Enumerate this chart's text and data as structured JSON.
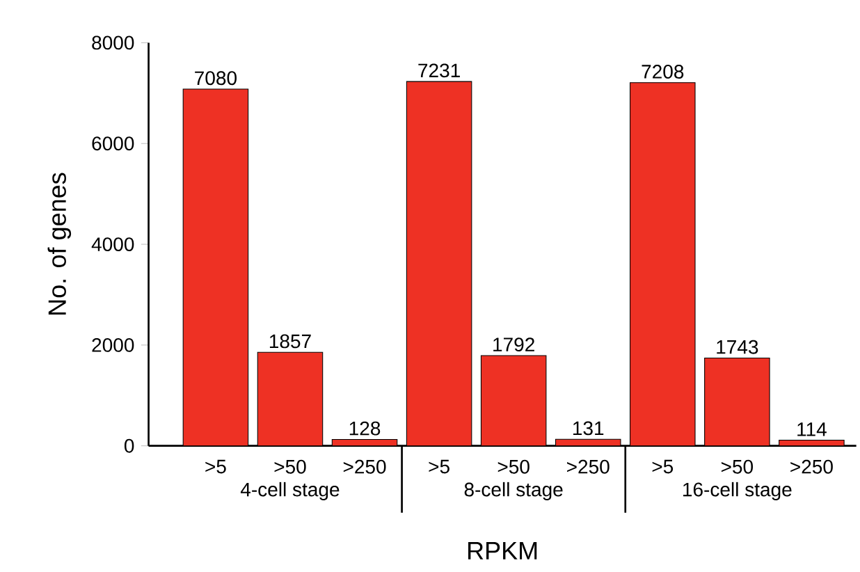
{
  "chart_data": {
    "type": "bar",
    "xlabel": "RPKM",
    "ylabel": "No. of genes",
    "categories": [
      ">5",
      ">50",
      ">250",
      ">5",
      ">50",
      ">250",
      ">5",
      ">50",
      ">250"
    ],
    "values": [
      7080,
      1857,
      128,
      7231,
      1792,
      131,
      7208,
      1743,
      114
    ],
    "color": "#ee3124",
    "ylim": [
      0,
      8000
    ],
    "yticks": [
      0,
      2000,
      4000,
      6000,
      8000
    ],
    "data_labels": true,
    "annotations": [
      "4-cell stage",
      "8-cell stage",
      "16-cell stage"
    ]
  }
}
